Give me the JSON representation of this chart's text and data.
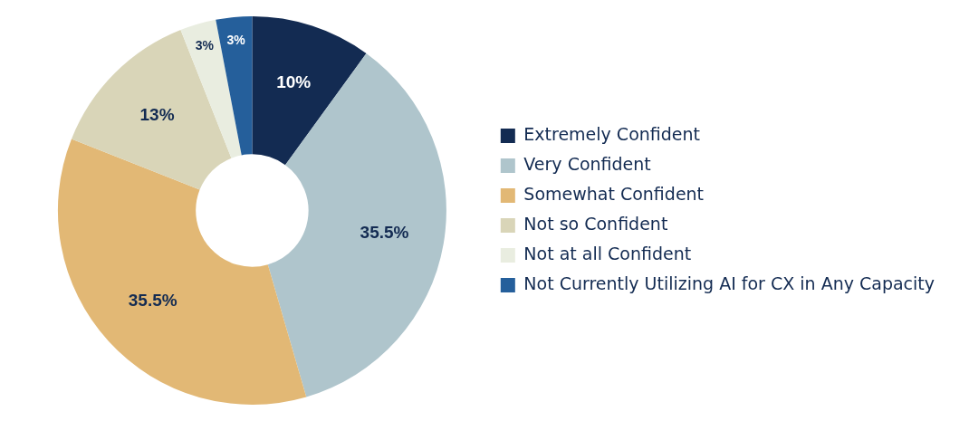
{
  "chart_data": {
    "type": "donut",
    "categories": [
      "Extremely Confident",
      "Very Confident",
      "Somewhat Confident",
      "Not so Confident",
      "Not at all Confident",
      "Not Currently Utilizing AI for CX in Any Capacity"
    ],
    "values": [
      10,
      35.5,
      35.5,
      13,
      3,
      3
    ],
    "colors": [
      "#132b52",
      "#afc5cc",
      "#e2b875",
      "#d9d5b8",
      "#e9ede0",
      "#255f9b"
    ],
    "value_labels": [
      "10%",
      "35.5%",
      "35.5%",
      "13%",
      "3%",
      "3%"
    ],
    "legend": "right"
  }
}
